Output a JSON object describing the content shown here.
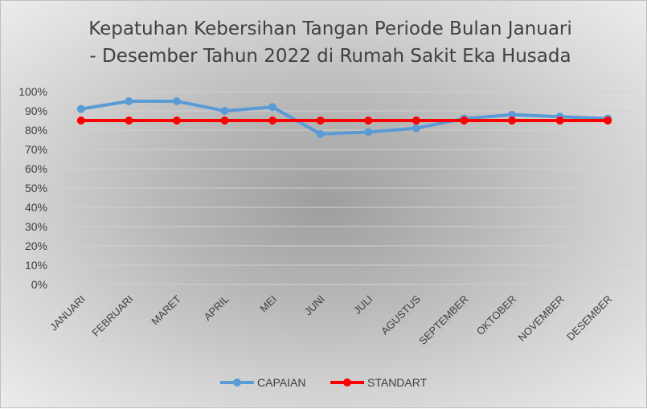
{
  "chart_data": {
    "type": "line",
    "title_line1": "Kepatuhan Kebersihan Tangan Periode Bulan Januari",
    "title_line2": "- Desember Tahun 2022 di Rumah Sakit Eka Husada",
    "categories": [
      "JANUARI",
      "FEBRUARI",
      "MARET",
      "APRIL",
      "MEI",
      "JUNI",
      "JULI",
      "AGUSTUS",
      "SEPTEMBER",
      "OKTOBER",
      "NOVEMBER",
      "DESEMBER"
    ],
    "y_ticks": [
      "0%",
      "10%",
      "20%",
      "30%",
      "40%",
      "50%",
      "60%",
      "70%",
      "80%",
      "90%",
      "100%"
    ],
    "ylim": [
      0,
      100
    ],
    "grid": true,
    "legend_position": "bottom",
    "series": [
      {
        "name": "CAPAIAN",
        "color": "#5b9bd5",
        "values": [
          91,
          95,
          95,
          90,
          92,
          78,
          79,
          81,
          86,
          88,
          87,
          86
        ]
      },
      {
        "name": "STANDART",
        "color": "#ff0000",
        "values": [
          85,
          85,
          85,
          85,
          85,
          85,
          85,
          85,
          85,
          85,
          85,
          85
        ]
      }
    ]
  }
}
